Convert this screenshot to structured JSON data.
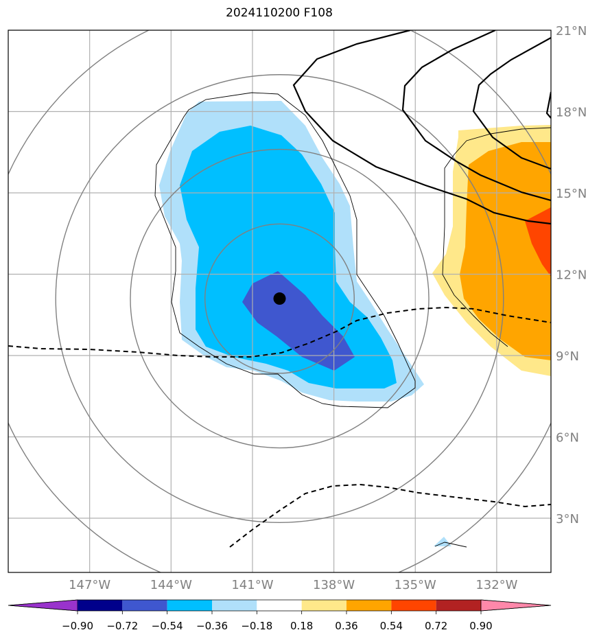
{
  "title": "2024110200 F108",
  "map": {
    "lon_range": [
      -150,
      -130
    ],
    "lat_range": [
      1,
      21
    ],
    "lon_ticks": [
      {
        "value": -147,
        "label": "147°W"
      },
      {
        "value": -144,
        "label": "144°W"
      },
      {
        "value": -141,
        "label": "141°W"
      },
      {
        "value": -138,
        "label": "138°W"
      },
      {
        "value": -135,
        "label": "135°W"
      },
      {
        "value": -132,
        "label": "132°W"
      }
    ],
    "lat_ticks": [
      {
        "value": 3,
        "label": "3°N"
      },
      {
        "value": 6,
        "label": "6°N"
      },
      {
        "value": 9,
        "label": "9°N"
      },
      {
        "value": 12,
        "label": "12°N"
      },
      {
        "value": 15,
        "label": "15°N"
      },
      {
        "value": 18,
        "label": "18°N"
      },
      {
        "value": 21,
        "label": "21°N"
      }
    ],
    "center_marker": {
      "lon": -140.0,
      "lat": 11.1
    },
    "range_rings_deg": [
      2.75,
      5.5,
      8.25,
      11.0
    ],
    "colors": {
      "grid": "#b0b0b0",
      "ring": "#808080",
      "neg_light": "#b0e0fa",
      "neg_mid": "#00bfff",
      "neg_dark": "#3f57cf",
      "pos_light": "#ffe88a",
      "pos_mid": "#ffa500",
      "pos_dark": "#ff4500"
    }
  },
  "colorbar": {
    "colors": [
      "#9933cc",
      "#00008b",
      "#3f57cf",
      "#00bfff",
      "#b0e0fa",
      "#ffffff",
      "#ffe88a",
      "#ffa500",
      "#ff4500",
      "#b22222",
      "#ff88aa"
    ],
    "labels": [
      "−0.90",
      "−0.72",
      "−0.54",
      "−0.36",
      "−0.18",
      "0.18",
      "0.36",
      "0.54",
      "0.72",
      "0.90"
    ]
  }
}
